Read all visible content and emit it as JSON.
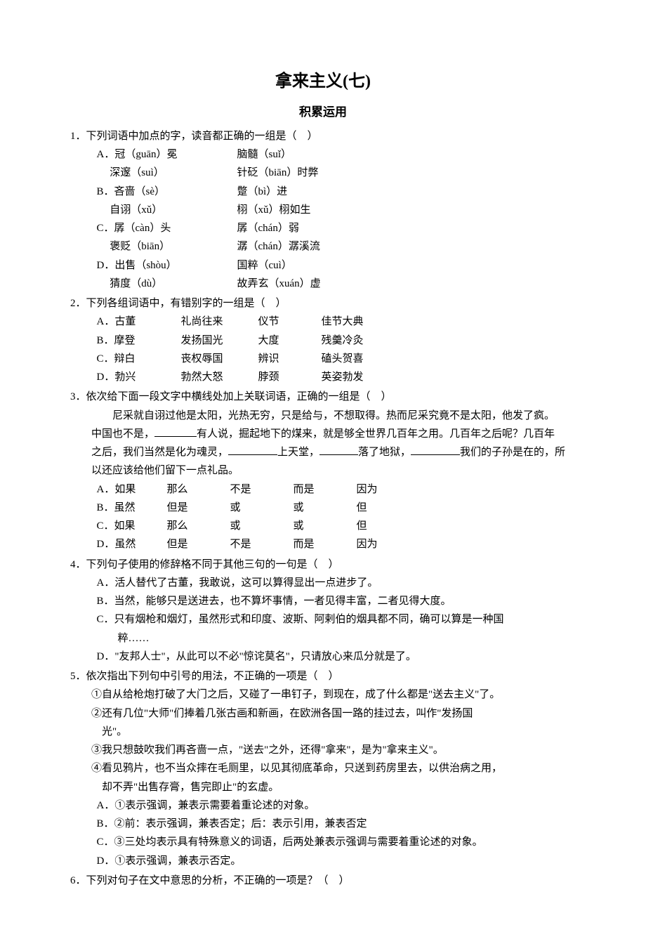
{
  "title": "拿来主义(七)",
  "subtitle": "积累运用",
  "q1": {
    "stem": "1．下列词语中加点的字，读音都正确的一组是（　）",
    "A": {
      "a1": "A．冠（guān）冕",
      "a2": "脑髓（suǐ）",
      "b1": "　 深邃（suì）",
      "b2": "针砭（biān）时弊"
    },
    "B": {
      "a1": "B．吝啬（sè）",
      "a2": "蹩（bì）进",
      "b1": "　 自诩（xǔ）",
      "b2": "栩（xǔ）栩如生"
    },
    "C": {
      "a1": "C．孱（càn）头",
      "a2": "孱（chán）弱",
      "b1": "　 褒贬（biān）",
      "b2": "潺（chán）潺溪流"
    },
    "D": {
      "a1": "D．出售（shòu）",
      "a2": "国粹（cuì）",
      "b1": "　 猜度（dù）",
      "b2": "故弄玄（xuán）虚"
    }
  },
  "q2": {
    "stem": "2．下列各组词语中，有错别字的一组是（　）",
    "rows": [
      [
        "A．古董",
        "礼尚往来",
        "仪节",
        "佳节大典"
      ],
      [
        "B．摩登",
        "发扬国光",
        "大度",
        "残羹冷灸"
      ],
      [
        "C．辩白",
        "丧权辱国",
        "辨识",
        "磕头贺喜"
      ],
      [
        "D．勃兴",
        "勃然大怒",
        "脖颈",
        "英姿勃发"
      ]
    ]
  },
  "q3": {
    "stem": "3．依次给下面一段文字中横线处加上关联词语，正确的一组是（　）",
    "para1": "尼采就自诩过他是太阳，光热无穷，只是给与，不想取得。热而尼采究竟不是太阳，他发了疯。",
    "para2a": "中国也不是，",
    "para2b": "有人说，掘起地下的煤来，就是够全世界几百年之用。几百年之后呢？几百年",
    "para3a": "之后，我们当然是化为魂灵，",
    "para3b": "上天堂，",
    "para3c": "落了地狱，",
    "para3d": "我们的子孙是在的，所",
    "para4": "以还应该给他们留下一点礼品。",
    "opts": [
      [
        "A．如果",
        "那么",
        "不是",
        "而是",
        "因为"
      ],
      [
        "B．虽然",
        "但是",
        "或",
        "或",
        "但"
      ],
      [
        "C．如果",
        "那么",
        "或",
        "或",
        "但"
      ],
      [
        "D．虽然",
        "但是",
        "不是",
        "而是",
        "因为"
      ]
    ]
  },
  "q4": {
    "stem": "4．下列句子使用的修辞格不同于其他三句的一句是（　）",
    "A": "A．活人替代了古董，我敢说，这可以算得显出一点进步了。",
    "B": "B．当然，能够只是送进去，也不算坏事情，一者见得丰富，二者见得大度。",
    "C1": "C．只有烟枪和烟灯，虽然形式和印度、波斯、阿剌伯的烟具都不同，确可以算是一种国",
    "C2": "粹……",
    "D": "D．\"友邦人士\"，从此可以不必\"惊诧莫名\"，只请放心来瓜分就是了。"
  },
  "q5": {
    "stem": "5．依次指出下列句中引号的用法，不正确的一项是（　）",
    "l1": "①自从给枪炮打破了大门之后，又碰了一串钉子，到现在，成了什么都是\"送去主义\"了。",
    "l2a": "②还有几位\"大师\"们捧着几张古画和新画，在欧洲各国一路的挂过去，叫作\"发扬国",
    "l2b": "光\"。",
    "l3": "③我只想鼓吹我们再吝啬一点，\"送去\"之外，还得\"拿来\"，是为\"拿来主义\"。",
    "l4a": "④看见鸦片，也不当众摔在毛厕里，以见其彻底革命，只送到药房里去，以供治病之用，",
    "l4b": "却不弄\"出售存膏，售完即止\"的玄虚。",
    "A": "A．①表示强调，兼表示需要着重论述的对象。",
    "B": "B．②前：表示强调，兼表否定；后：表示引用，兼表否定",
    "C": "C．③三处均表示具有特殊意义的词语，后两处兼表示强调与需要着重论述的对象。",
    "D": "D．①表示强调，兼表示否定。"
  },
  "q6": {
    "stem": "6．下列对句子在文中意思的分析，不正确的一项是？（　）"
  }
}
